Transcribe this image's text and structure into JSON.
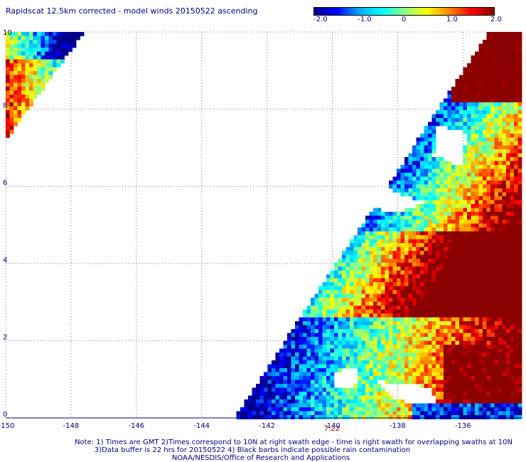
{
  "title": "Rapidscat 12.5km corrected - model winds 20150522 ascending",
  "colorbar": {
    "labels": [
      "-2.0",
      "-1.0",
      "0",
      "1.0",
      "2.0"
    ],
    "colors": [
      "#00008b",
      "#0000ff",
      "#00aaff",
      "#00ffff",
      "#88ff88",
      "#ffff00",
      "#ff8800",
      "#ff0000",
      "#8b0000"
    ]
  },
  "time_label": "7:22",
  "notes": [
    "Note: 1) Times are GMT 2)Times correspond to 10N at right swath edge - time is right swath for overlapping swaths at 10N",
    "3)Data buffer is 22 hrs for 20150522 4) Black barbs indicate possible rain contamination",
    "NOAA/NESDIS/Office of Research and Applications"
  ],
  "chart_data": {
    "type": "heatmap",
    "title": "Rapidscat 12.5km corrected - model winds 20150522 ascending",
    "x_ticks": [
      "-150",
      "-148",
      "-146",
      "-144",
      "-142",
      "-140",
      "-138",
      "-136"
    ],
    "y_ticks": [
      "0",
      "2",
      "4",
      "6",
      "8",
      "10"
    ],
    "xlim": [
      -150,
      -134.2
    ],
    "ylim": [
      0,
      10
    ],
    "value_range": [
      -2.0,
      2.0
    ],
    "grid": true,
    "swaths": [
      {
        "name": "left",
        "polygon_lonlat": [
          [
            -150,
            10
          ],
          [
            -147.6,
            10
          ],
          [
            -150,
            7.2
          ]
        ],
        "description_values": "mostly positive (0.5 to 2.0) in west, negative (-1.0 to -2.0) near eastern edge"
      },
      {
        "name": "right",
        "polygon_lonlat": [
          [
            -134.2,
            10
          ],
          [
            -135.2,
            10
          ],
          [
            -143.0,
            0
          ],
          [
            -134.2,
            0
          ]
        ],
        "description_values": "strongly positive (>2.0) in east, strongly negative (< -1.5) in southwest"
      }
    ],
    "data_gaps_lonlat": [
      [
        [
          -139.2,
          5.9
        ],
        [
          -138.2,
          5.9
        ],
        [
          -137.2,
          5.6
        ],
        [
          -138.0,
          5.3
        ],
        [
          -139.5,
          5.6
        ]
      ],
      [
        [
          -136.8,
          7.6
        ],
        [
          -135.9,
          7.4
        ],
        [
          -136.0,
          6.5
        ],
        [
          -136.9,
          6.8
        ]
      ],
      [
        [
          -138.6,
          0.95
        ],
        [
          -137.0,
          0.8
        ],
        [
          -136.8,
          0.35
        ],
        [
          -138.0,
          0.45
        ]
      ],
      [
        [
          -140.0,
          1.2
        ],
        [
          -139.2,
          1.3
        ],
        [
          -139.3,
          0.8
        ],
        [
          -140.0,
          0.8
        ]
      ]
    ]
  }
}
